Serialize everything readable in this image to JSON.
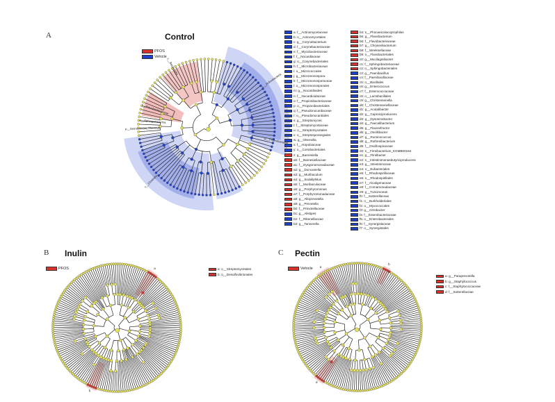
{
  "colors": {
    "pfos": "#d9322a",
    "vehicle": "#1f3fd1",
    "node": "#e6e25a",
    "edge": "#222222"
  },
  "panel_a": {
    "letter": "A",
    "title": "Control",
    "groups": [
      {
        "name": "PFOS",
        "color": "#d9322a"
      },
      {
        "name": "Vehicle",
        "color": "#1f3fd1"
      }
    ],
    "legend_col1": [
      {
        "label": "a: f__Actinomycetaceae",
        "g": "v"
      },
      {
        "label": "b: o__Actinomycetales",
        "g": "v"
      },
      {
        "label": "c: g__Corynebacterium",
        "g": "v"
      },
      {
        "label": "d: f__Corynebacteriaceae",
        "g": "v"
      },
      {
        "label": "e: f__Mycobacteriaceae",
        "g": "v"
      },
      {
        "label": "f: f__Nocardiaceae",
        "g": "v"
      },
      {
        "label": "g: o__Corynebacteriales",
        "g": "v"
      },
      {
        "label": "h: f__Microbacteriaceae",
        "g": "v"
      },
      {
        "label": "i: o__Micrococcales",
        "g": "v"
      },
      {
        "label": "j: g__Micromonospora",
        "g": "v"
      },
      {
        "label": "k: f__Micromonosporaceae",
        "g": "v"
      },
      {
        "label": "l: o__Micromonosporales",
        "g": "v"
      },
      {
        "label": "m: g__Nocardioides",
        "g": "v"
      },
      {
        "label": "n: f__Nocardioidaceae",
        "g": "v"
      },
      {
        "label": "o: f__Propionibacteriaceae",
        "g": "v"
      },
      {
        "label": "p: o__Propionibacteriales",
        "g": "v"
      },
      {
        "label": "q: f__Pseudonocardiaceae",
        "g": "v"
      },
      {
        "label": "r: o__Pseudonocardiales",
        "g": "v"
      },
      {
        "label": "s: g__Streptomyces",
        "g": "v"
      },
      {
        "label": "t: f__Streptomycetaceae",
        "g": "v"
      },
      {
        "label": "u: o__Streptomycetales",
        "g": "v"
      },
      {
        "label": "v: o__Streptosporangiales",
        "g": "v"
      },
      {
        "label": "w: g__Olsenella",
        "g": "v"
      },
      {
        "label": "x: f__Atopobiaceae",
        "g": "v"
      },
      {
        "label": "y: o__Coriobacteriales",
        "g": "v"
      },
      {
        "label": "z: g__Barnesiella",
        "g": "p"
      },
      {
        "label": "a0: f__Barnesiellaceae",
        "g": "p"
      },
      {
        "label": "a1: f__Dysgonomonadaceae",
        "g": "p"
      },
      {
        "label": "a2: g__Duncaniella",
        "g": "p"
      },
      {
        "label": "a3: g__Muribaculum",
        "g": "p"
      },
      {
        "label": "a4: g__Sodaliphilus",
        "g": "p"
      },
      {
        "label": "a5: f__Muribaculaceae",
        "g": "p"
      },
      {
        "label": "a6: g__Porphyromonas",
        "g": "p"
      },
      {
        "label": "a7: f__Porphyromonadaceae",
        "g": "p"
      },
      {
        "label": "a8: g__Alloprevotella",
        "g": "p"
      },
      {
        "label": "a9: g__Prevotella",
        "g": "p"
      },
      {
        "label": "b0: f__Prevotellaceae",
        "g": "p"
      },
      {
        "label": "b1: g__Alistipes",
        "g": "v"
      },
      {
        "label": "b2: f__Rikenellaceae",
        "g": "v"
      },
      {
        "label": "b3: g__Tannerella",
        "g": "v"
      }
    ],
    "legend_col2": [
      {
        "label": "b4: s__Phocaeicolacoprophilus",
        "g": "p"
      },
      {
        "label": "b5: g__Flavobacterium",
        "g": "p"
      },
      {
        "label": "b6: f__Flavobacteriaceae",
        "g": "p"
      },
      {
        "label": "b7: g__Chryseobacterium",
        "g": "p"
      },
      {
        "label": "b8: f__Weeksellaceae",
        "g": "p"
      },
      {
        "label": "b9: o__Flavobacteriales",
        "g": "p"
      },
      {
        "label": "c0: g__Mucilaginibacter",
        "g": "p"
      },
      {
        "label": "c1: f__Sphingobacteriaceae",
        "g": "p"
      },
      {
        "label": "c2: o__Sphingobacteriales",
        "g": "p"
      },
      {
        "label": "c3: g__Paenibacillus",
        "g": "v"
      },
      {
        "label": "c4: f__Paenibacillaceae",
        "g": "v"
      },
      {
        "label": "c5: o__Bacillales",
        "g": "v"
      },
      {
        "label": "c6: g__Enterococcus",
        "g": "v"
      },
      {
        "label": "c7: f__Enterococcaceae",
        "g": "v"
      },
      {
        "label": "c8: o__Lactobacillales",
        "g": "v"
      },
      {
        "label": "c9: g__Christensenella",
        "g": "v"
      },
      {
        "label": "d0: f__Christensenellaceae",
        "g": "v"
      },
      {
        "label": "d1: g__Acutalibacter",
        "g": "v"
      },
      {
        "label": "d2: g__Caproiciproducens",
        "g": "v"
      },
      {
        "label": "d3: g__Dysosmobacter",
        "g": "v"
      },
      {
        "label": "d4: g__Faecalibacterium",
        "g": "v"
      },
      {
        "label": "d5: g__Flavonifractor",
        "g": "v"
      },
      {
        "label": "d6: g__Oscillibacter",
        "g": "v"
      },
      {
        "label": "d7: g__Ruminococcus",
        "g": "v"
      },
      {
        "label": "d8: g__Ruthenibacterium",
        "g": "v"
      },
      {
        "label": "d9: f__Oscillospiraceae",
        "g": "v"
      },
      {
        "label": "e0: s__Firmibacterium_KGMB00164",
        "g": "v"
      },
      {
        "label": "e1: g__Flintibacter",
        "g": "v"
      },
      {
        "label": "e2: s__Intestinimonasbutyriciproducens",
        "g": "v"
      },
      {
        "label": "e3: g__Intestinimonas",
        "g": "v"
      },
      {
        "label": "e4: o__Eubacteriales",
        "g": "v"
      },
      {
        "label": "e5: f__Rhodospirillaceae",
        "g": "v"
      },
      {
        "label": "e6: o__Rhodospirillales",
        "g": "v"
      },
      {
        "label": "e7: f__Alcaligenaceae",
        "g": "v"
      },
      {
        "label": "e8: f__Comamonadaceae",
        "g": "v"
      },
      {
        "label": "e9: g__Turicimonas",
        "g": "v"
      },
      {
        "label": "f0: f__Sutterellaceae",
        "g": "v"
      },
      {
        "label": "f1: o__Burkholderiales",
        "g": "v"
      },
      {
        "label": "f2: o__Myxococcales",
        "g": "v"
      },
      {
        "label": "f3: g__Citrobacter",
        "g": "v"
      },
      {
        "label": "f4: f__Enterobacteriaceae",
        "g": "v"
      },
      {
        "label": "f5: o__Enterobacterales",
        "g": "v"
      },
      {
        "label": "f6: f__Synergistaceae",
        "g": "v"
      },
      {
        "label": "f7: o__Synergistales",
        "g": "v"
      }
    ],
    "clade_labels": [
      {
        "text": "f__Flavobacteriaceae"
      },
      {
        "text": "c__Sphingobacteriia"
      },
      {
        "text": "c__Bacteroidia"
      },
      {
        "text": "c__Actinobacteria"
      },
      {
        "text": "c__Clostridia"
      },
      {
        "text": "p__Proteobacteria"
      },
      {
        "text": "p__Deinococcus_Thermus"
      }
    ]
  },
  "panel_b": {
    "letter": "B",
    "title": "Inulin",
    "groups": [
      {
        "name": "PFOS",
        "color": "#d9322a"
      }
    ],
    "legend": [
      {
        "label": "a: o__Streptomycetales",
        "g": "p"
      },
      {
        "label": "b: o__Desulfovibrionales",
        "g": "p"
      }
    ],
    "markers": [
      "a",
      "b"
    ]
  },
  "panel_c": {
    "letter": "C",
    "title": "Pectin",
    "groups": [
      {
        "name": "Vehicle",
        "color": "#d9322a"
      }
    ],
    "legend": [
      {
        "label": "a: g__Paraprevotella",
        "g": "p"
      },
      {
        "label": "b: g__Staphylococcus",
        "g": "p"
      },
      {
        "label": "c: f__Staphylococcaceae",
        "g": "p"
      },
      {
        "label": "d: f__Sutterellaceae",
        "g": "p"
      }
    ],
    "markers": [
      "a",
      "b",
      "c",
      "d"
    ]
  }
}
